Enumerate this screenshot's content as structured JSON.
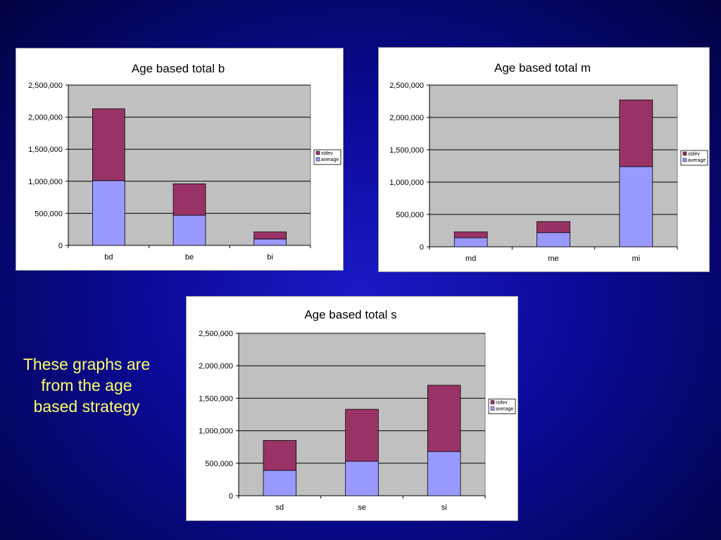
{
  "slide": {
    "caption": "These graphs are from the age based strategy"
  },
  "colors": {
    "background_start": "#1a1ac8",
    "background_end": "#020240",
    "caption": "#ffff66",
    "plot_area": "#c0c0c0",
    "average": "#9999ff",
    "stdev": "#993366"
  },
  "chart_data": [
    {
      "id": "b",
      "type": "bar",
      "stacked": true,
      "title": "Age based total b",
      "xlabel": "",
      "ylabel": "",
      "categories": [
        "bd",
        "be",
        "bi"
      ],
      "series": [
        {
          "name": "average",
          "color": "#9999ff",
          "values": [
            1010000,
            470000,
            100000
          ]
        },
        {
          "name": "stdev",
          "color": "#993366",
          "values": [
            1120000,
            490000,
            110000
          ]
        }
      ],
      "ylim": [
        0,
        2500000
      ],
      "yticks": [
        "0",
        "500,000",
        "1,000,000",
        "1,500,000",
        "2,000,000",
        "2,500,000"
      ],
      "grid": true,
      "legend": "right"
    },
    {
      "id": "m",
      "type": "bar",
      "stacked": true,
      "title": "Age based total m",
      "xlabel": "",
      "ylabel": "",
      "categories": [
        "md",
        "me",
        "mi"
      ],
      "series": [
        {
          "name": "average",
          "color": "#9999ff",
          "values": [
            140000,
            220000,
            1240000
          ]
        },
        {
          "name": "stdev",
          "color": "#993366",
          "values": [
            90000,
            170000,
            1030000
          ]
        }
      ],
      "ylim": [
        0,
        2500000
      ],
      "yticks": [
        "0",
        "500,000",
        "1,000,000",
        "1,500,000",
        "2,000,000",
        "2,500,000"
      ],
      "grid": true,
      "legend": "right"
    },
    {
      "id": "s",
      "type": "bar",
      "stacked": true,
      "title": "Age based total s",
      "xlabel": "",
      "ylabel": "",
      "categories": [
        "sd",
        "se",
        "si"
      ],
      "series": [
        {
          "name": "average",
          "color": "#9999ff",
          "values": [
            390000,
            530000,
            680000
          ]
        },
        {
          "name": "stdev",
          "color": "#993366",
          "values": [
            460000,
            800000,
            1020000
          ]
        }
      ],
      "ylim": [
        0,
        2500000
      ],
      "yticks": [
        "0",
        "500,000",
        "1,000,000",
        "1,500,000",
        "2,000,000",
        "2,500,000"
      ],
      "grid": true,
      "legend": "right"
    }
  ]
}
